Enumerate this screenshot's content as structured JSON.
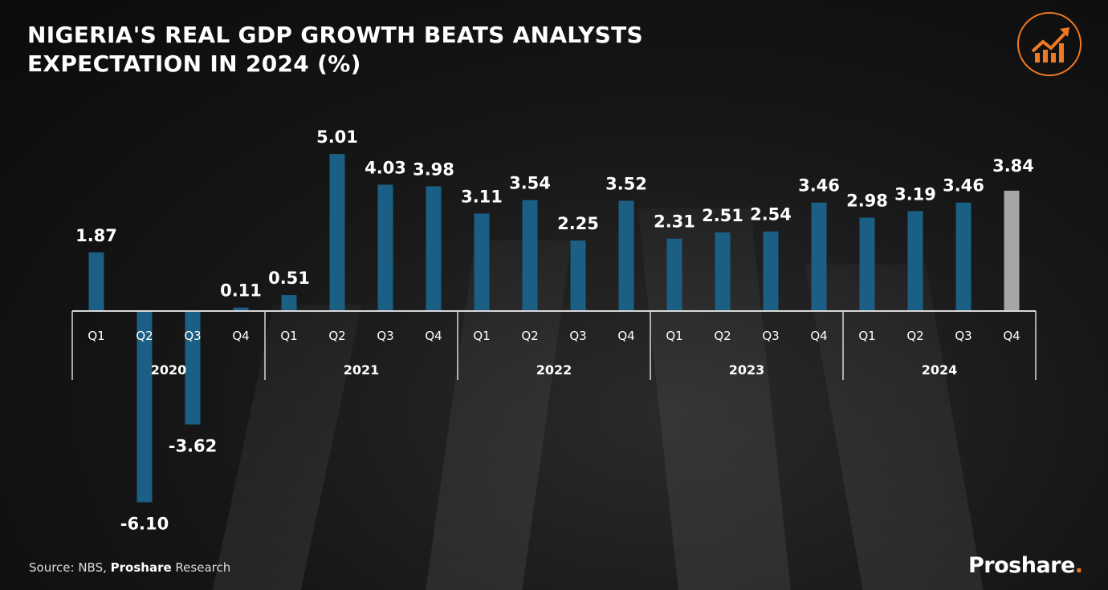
{
  "title": "NIGERIA'S REAL GDP GROWTH BEATS ANALYSTS EXPECTATION IN 2024 (%)",
  "source": {
    "prefix": "Source: NBS, ",
    "bold": "Proshare",
    "suffix": " Research"
  },
  "brand": {
    "name": "Proshare",
    "dot": "."
  },
  "logo_icon": "growth-chart-icon",
  "colors": {
    "bar": "#1b5f84",
    "highlight": "#a6a6a6",
    "accent": "#f07a24",
    "text": "#ffffff"
  },
  "chart_data": {
    "type": "bar",
    "title": "NIGERIA'S REAL GDP GROWTH BEATS ANALYSTS EXPECTATION IN 2024 (%)",
    "xlabel": "",
    "ylabel": "",
    "ylim": [
      -6.5,
      5.5
    ],
    "grid": false,
    "years": [
      "2020",
      "2021",
      "2022",
      "2023",
      "2024"
    ],
    "quarters": [
      "Q1",
      "Q2",
      "Q3",
      "Q4"
    ],
    "values": [
      1.87,
      -6.1,
      -3.62,
      0.11,
      0.51,
      5.01,
      4.03,
      3.98,
      3.11,
      3.54,
      2.25,
      3.52,
      2.31,
      2.51,
      2.54,
      3.46,
      2.98,
      3.19,
      3.46,
      3.84
    ],
    "labels": [
      "1.87",
      "-6.10",
      "-3.62",
      "0.11",
      "0.51",
      "5.01",
      "4.03",
      "3.98",
      "3.11",
      "3.54",
      "2.25",
      "3.52",
      "2.31",
      "2.51",
      "2.54",
      "3.46",
      "2.98",
      "3.19",
      "3.46",
      "3.84"
    ],
    "highlight_index": 19
  }
}
